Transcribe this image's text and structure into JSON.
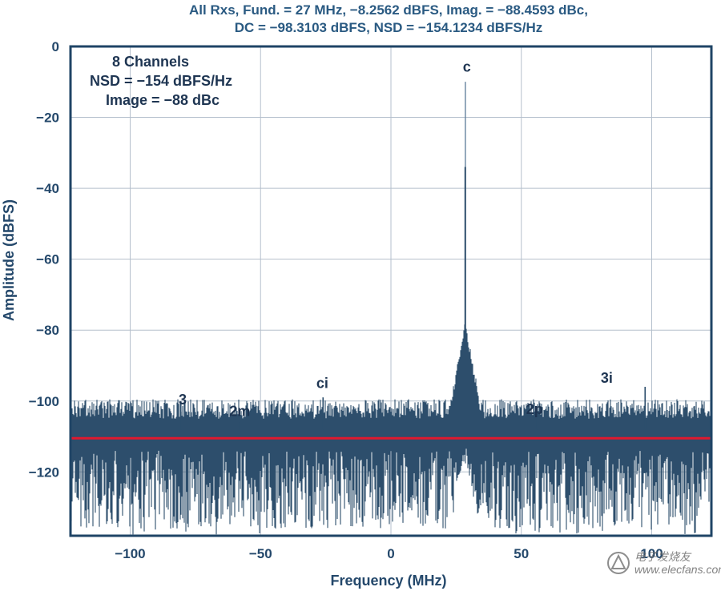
{
  "chart_data": {
    "type": "line",
    "title": "All Rxs, Fund. = 27 MHz, −8.2562 dBFS, Imag. = −88.4593 dBc,",
    "subtitle": "DC = −98.3103 dBFS, NSD = −154.1234 dBFS/Hz",
    "xlabel": "Frequency (MHz)",
    "ylabel": "Amplitude (dBFS)",
    "xlim": [
      -122.88,
      122.88
    ],
    "ylim": [
      -138,
      0
    ],
    "x_ticks": [
      -100,
      -50,
      0,
      50,
      100
    ],
    "x_tick_labels": [
      "−100",
      "−50",
      "0",
      "50",
      "100"
    ],
    "y_ticks": [
      0,
      -20,
      -40,
      -60,
      -80,
      -100,
      -120
    ],
    "y_tick_labels": [
      "0",
      "−20",
      "−40",
      "−60",
      "−80",
      "−100",
      "−120"
    ],
    "grid": true,
    "noise_floor": -108,
    "reference_line": {
      "value": -110.5,
      "color": "#e0192e"
    },
    "fundamental": {
      "label": "c",
      "x": 28.5,
      "y": -10
    },
    "spurs": [
      {
        "label": "3",
        "x": -80.5,
        "y": -103
      },
      {
        "label": "2m",
        "x": -58,
        "y": -106
      },
      {
        "label": "ci",
        "x": -26,
        "y": -99
      },
      {
        "label": "2p",
        "x": 56,
        "y": -105
      },
      {
        "label": "3i",
        "x": 97.5,
        "y": -96
      }
    ],
    "annotation": [
      "8 Channels",
      "NSD = −154 dBFS/Hz",
      "Image = −88 dBc"
    ],
    "colors": {
      "trace": "#2d4e6c",
      "frame": "#1f4466",
      "grid": "#b4bfcc",
      "text": "#24486b"
    }
  },
  "watermark": "电子发烧友",
  "watermark_url": "www.elecfans.com"
}
